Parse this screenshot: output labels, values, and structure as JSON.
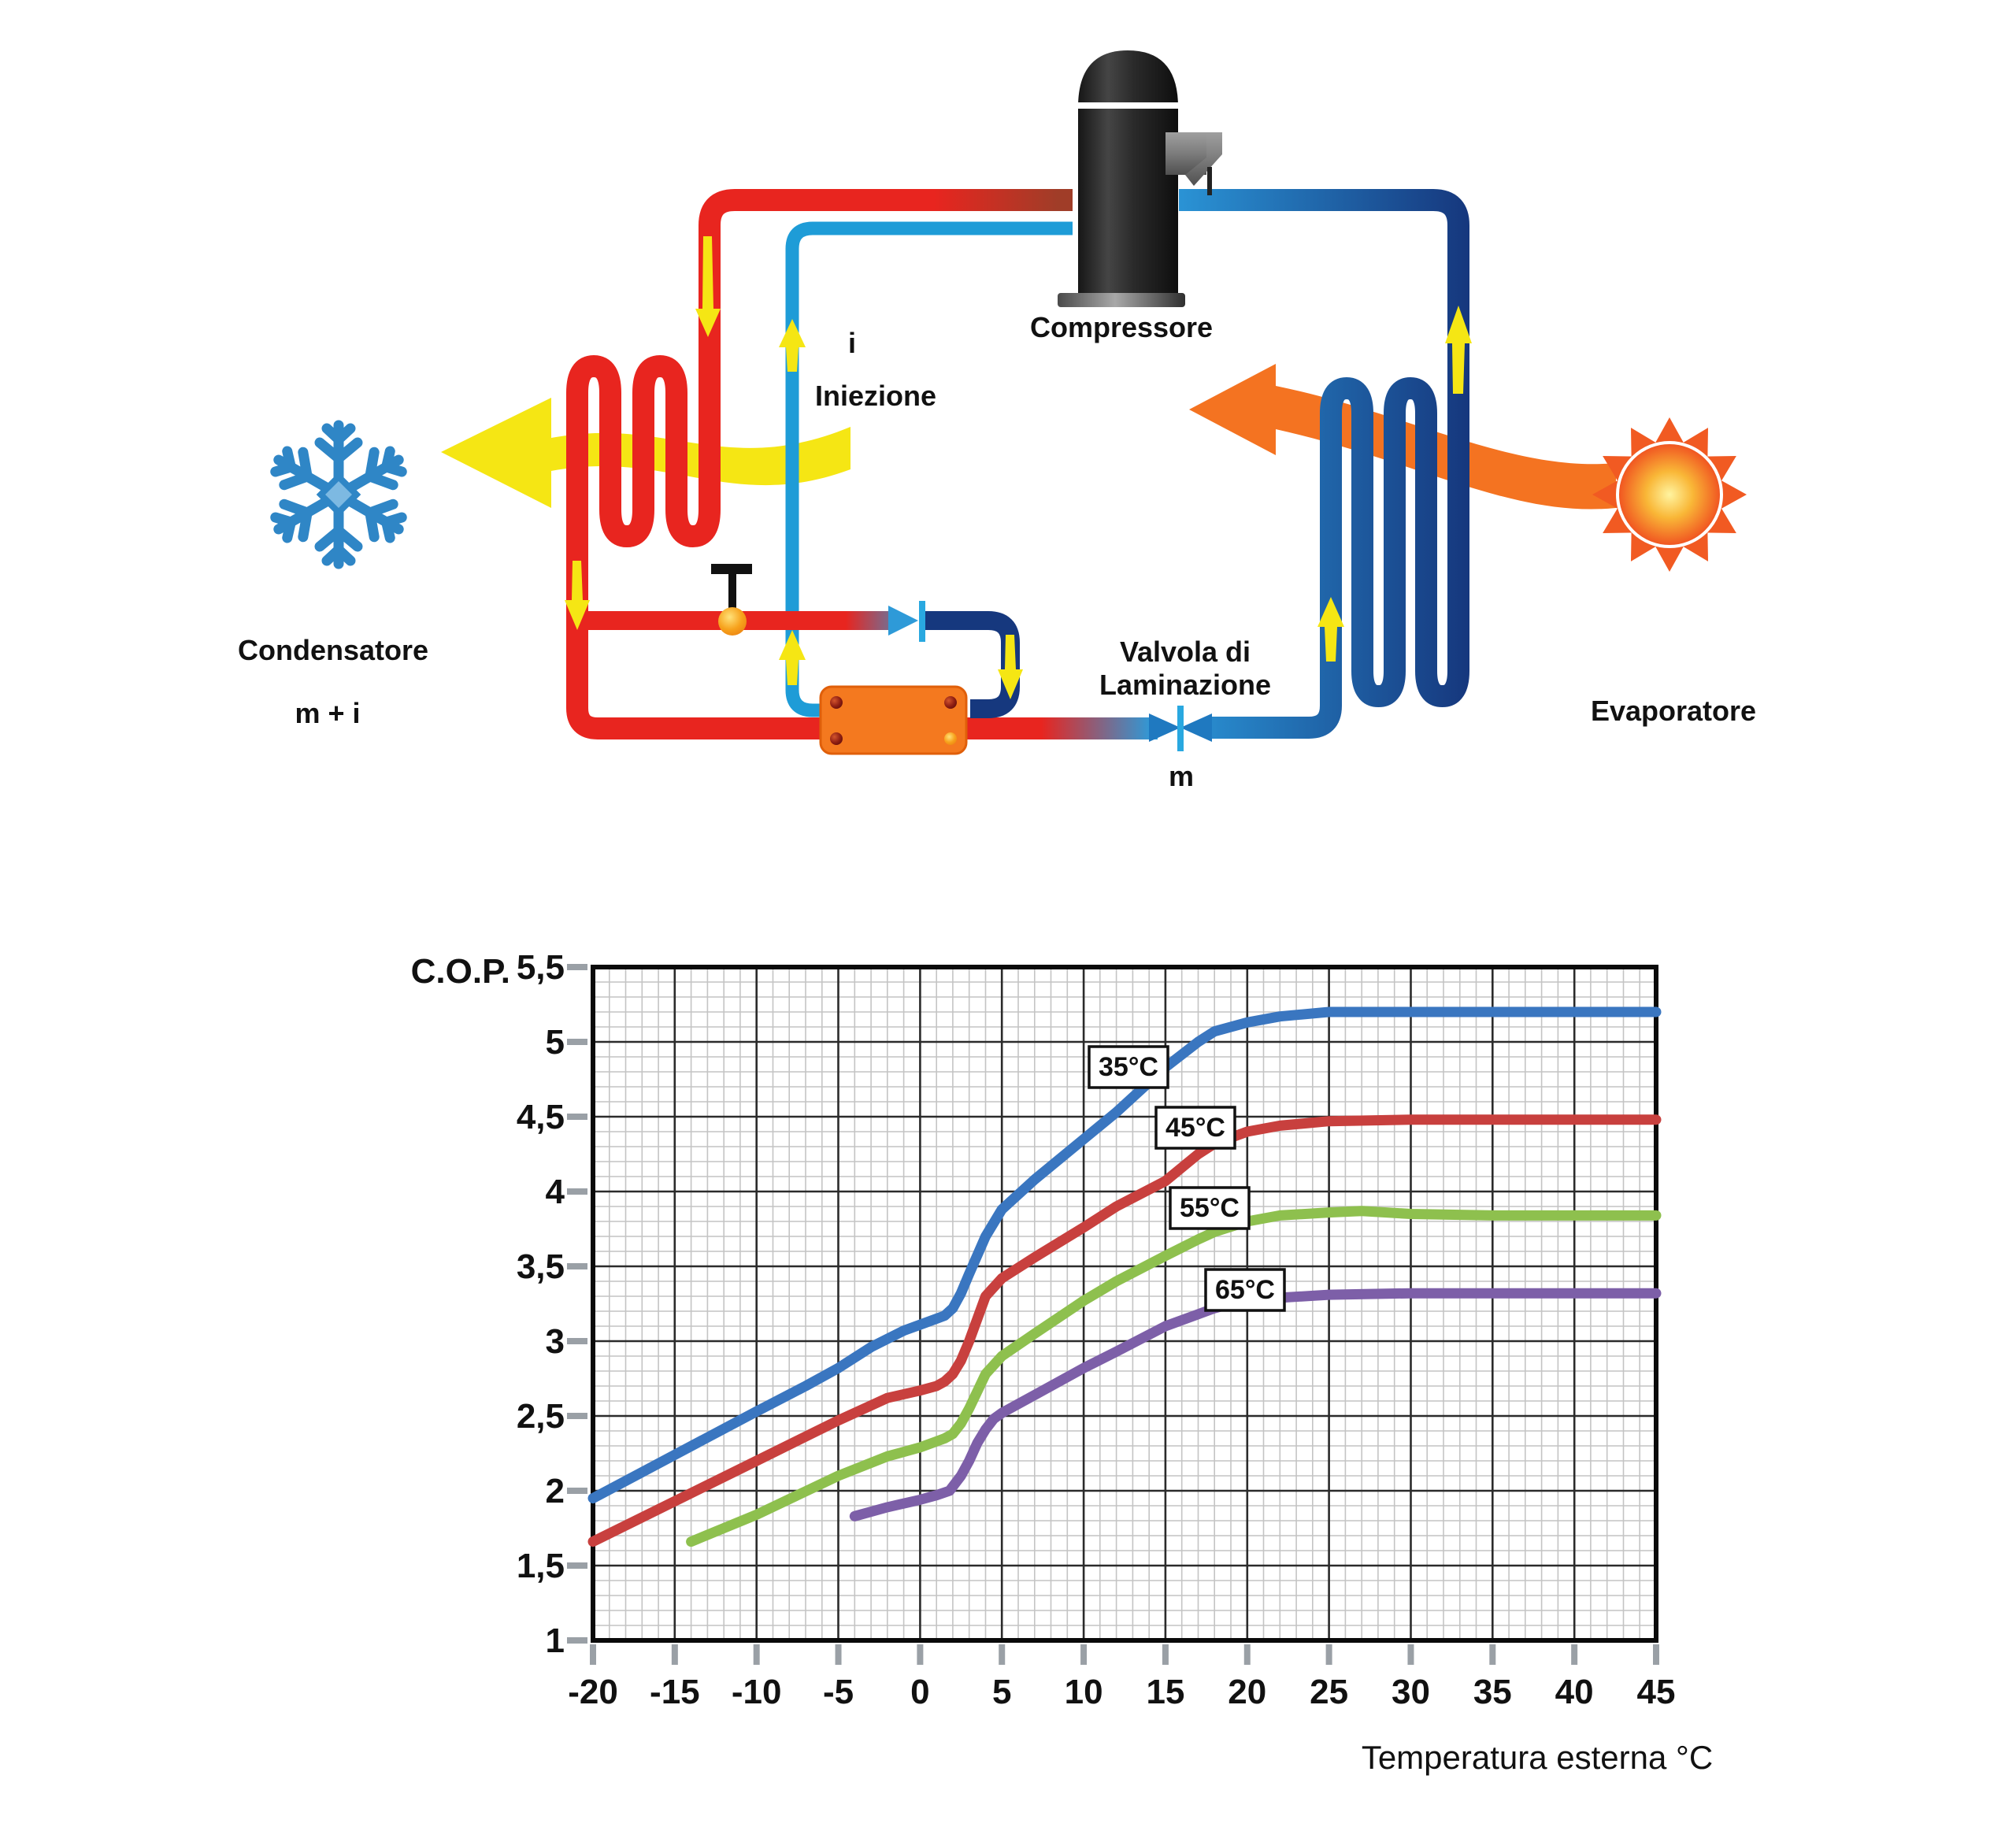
{
  "diagram": {
    "labels": {
      "compressor": "Compressore",
      "condenser_line1": "Condensatore",
      "condenser_line2": "m + i",
      "evaporator": "Evaporatore",
      "injection_symbol": "i",
      "injection": "Iniezione",
      "expansion_valve_line1": "Valvola di",
      "expansion_valve_line2": "Laminazione",
      "mass_symbol": "m"
    },
    "colors": {
      "hot_pipe": "#e8251f",
      "cold_pipe_light": "#2a93d5",
      "cold_pipe_dark": "#16387e",
      "injection_pipe": "#1e9cd7",
      "heat_exchanger": "#f4791f",
      "flow_arrow": "#f5e614",
      "air_arrow_warm": "#f47321",
      "snowflake": "#2f86c6"
    }
  },
  "chart": {
    "y_axis_label": "C.O.P.",
    "x_axis_label": "Temperatura esterna °C",
    "y_ticks": [
      "5,5",
      "5",
      "4,5",
      "4",
      "3,5",
      "3",
      "2,5",
      "2",
      "1,5",
      "1"
    ],
    "x_ticks": [
      "-20",
      "-15",
      "-10",
      "-5",
      "0",
      "5",
      "10",
      "15",
      "20",
      "25",
      "30",
      "35",
      "40",
      "45"
    ]
  },
  "chart_data": {
    "type": "line",
    "title": "",
    "xlabel": "Temperatura esterna °C",
    "ylabel": "C.O.P.",
    "xlim": [
      -20,
      45
    ],
    "ylim": [
      1,
      5.5
    ],
    "x_major_step": 5,
    "x_minor_step": 1,
    "y_major_step": 0.5,
    "y_minor_step": 0.1,
    "grid": true,
    "legend_position": "on-curve-boxes",
    "series": [
      {
        "name": "35°C",
        "color": "#3a76c0",
        "points": [
          [
            -20,
            1.95
          ],
          [
            -15,
            2.24
          ],
          [
            -10,
            2.53
          ],
          [
            -7,
            2.7
          ],
          [
            -5,
            2.82
          ],
          [
            -3,
            2.96
          ],
          [
            -1,
            3.07
          ],
          [
            0,
            3.11
          ],
          [
            1,
            3.15
          ],
          [
            1.5,
            3.17
          ],
          [
            2,
            3.22
          ],
          [
            2.5,
            3.32
          ],
          [
            3,
            3.45
          ],
          [
            4,
            3.7
          ],
          [
            5,
            3.88
          ],
          [
            7,
            4.08
          ],
          [
            10,
            4.35
          ],
          [
            12,
            4.53
          ],
          [
            15,
            4.83
          ],
          [
            17,
            5.0
          ],
          [
            18,
            5.07
          ],
          [
            20,
            5.13
          ],
          [
            22,
            5.17
          ],
          [
            25,
            5.2
          ],
          [
            30,
            5.2
          ],
          [
            35,
            5.2
          ],
          [
            40,
            5.2
          ],
          [
            45,
            5.2
          ]
        ]
      },
      {
        "name": "45°C",
        "color": "#c8403e",
        "points": [
          [
            -20,
            1.66
          ],
          [
            -15,
            1.93
          ],
          [
            -10,
            2.2
          ],
          [
            -5,
            2.47
          ],
          [
            -2,
            2.62
          ],
          [
            0,
            2.67
          ],
          [
            1,
            2.7
          ],
          [
            1.5,
            2.73
          ],
          [
            2,
            2.78
          ],
          [
            2.5,
            2.87
          ],
          [
            3,
            3.0
          ],
          [
            4,
            3.3
          ],
          [
            5,
            3.42
          ],
          [
            7,
            3.56
          ],
          [
            10,
            3.76
          ],
          [
            12,
            3.9
          ],
          [
            15,
            4.07
          ],
          [
            17,
            4.25
          ],
          [
            18,
            4.32
          ],
          [
            20,
            4.4
          ],
          [
            22,
            4.44
          ],
          [
            25,
            4.47
          ],
          [
            30,
            4.48
          ],
          [
            35,
            4.48
          ],
          [
            40,
            4.48
          ],
          [
            45,
            4.48
          ]
        ]
      },
      {
        "name": "55°C",
        "color": "#8ec04e",
        "points": [
          [
            -14,
            1.66
          ],
          [
            -10,
            1.84
          ],
          [
            -5,
            2.1
          ],
          [
            -2,
            2.23
          ],
          [
            0,
            2.29
          ],
          [
            1,
            2.33
          ],
          [
            1.5,
            2.35
          ],
          [
            2,
            2.38
          ],
          [
            2.5,
            2.45
          ],
          [
            3,
            2.55
          ],
          [
            4,
            2.78
          ],
          [
            5,
            2.9
          ],
          [
            7,
            3.05
          ],
          [
            10,
            3.27
          ],
          [
            12,
            3.4
          ],
          [
            15,
            3.57
          ],
          [
            17,
            3.68
          ],
          [
            18,
            3.73
          ],
          [
            20,
            3.8
          ],
          [
            22,
            3.84
          ],
          [
            25,
            3.86
          ],
          [
            27,
            3.87
          ],
          [
            30,
            3.85
          ],
          [
            35,
            3.84
          ],
          [
            40,
            3.84
          ],
          [
            45,
            3.84
          ]
        ]
      },
      {
        "name": "65°C",
        "color": "#7d5fa8",
        "points": [
          [
            -4,
            1.83
          ],
          [
            -2,
            1.89
          ],
          [
            0,
            1.94
          ],
          [
            1,
            1.97
          ],
          [
            1.8,
            2.0
          ],
          [
            2.5,
            2.1
          ],
          [
            3,
            2.2
          ],
          [
            3.5,
            2.32
          ],
          [
            4,
            2.41
          ],
          [
            4.5,
            2.48
          ],
          [
            5,
            2.52
          ],
          [
            7,
            2.64
          ],
          [
            10,
            2.82
          ],
          [
            12,
            2.93
          ],
          [
            15,
            3.1
          ],
          [
            17,
            3.18
          ],
          [
            18,
            3.22
          ],
          [
            19,
            3.25
          ],
          [
            20,
            3.26
          ],
          [
            22,
            3.29
          ],
          [
            25,
            3.31
          ],
          [
            30,
            3.32
          ],
          [
            35,
            3.32
          ],
          [
            40,
            3.32
          ],
          [
            45,
            3.32
          ]
        ]
      }
    ]
  }
}
